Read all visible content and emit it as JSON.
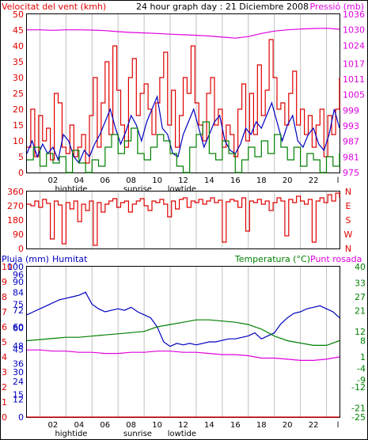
{
  "header": {
    "wind_title": "Velocitat del vent (kmh)",
    "graph_title": "24 hour graph day : 21 Diciembre 2008",
    "pressure_title": "Pressió (mb)"
  },
  "bottom_header": {
    "rain_title": "Pluja (mm)",
    "humidity_title": "Humitat",
    "temperature_title": "Temperatura (°C)",
    "dewpoint_title": "Punt rosada"
  },
  "x_ticks": [
    "02",
    "04",
    "06",
    "08",
    "10",
    "12",
    "14",
    "16",
    "18",
    "20",
    "22"
  ],
  "x_annotations": [
    {
      "label": "hightide",
      "hour": 3.4
    },
    {
      "label": "sunrise",
      "hour": 8.5
    },
    {
      "label": "lowtide",
      "hour": 11.9
    }
  ],
  "colors": {
    "wind_speed": "#e00000",
    "wind_avg": "#0000c0",
    "wind_min": "#008000",
    "pressure": "#e000e0",
    "direction": "#e00000",
    "humidity": "#0000c0",
    "temperature": "#008000",
    "dewpoint": "#e000e0",
    "rain": "#e00000",
    "grid": "#c0c0c0"
  },
  "chart_data": [
    {
      "type": "line",
      "title": "24 hour graph day : 21 Diciembre 2008",
      "ylabel": "Velocitat del vent (kmh)",
      "y2label": "Pressió (mb)",
      "x_range": [
        0,
        24
      ],
      "ylim": [
        0,
        50
      ],
      "y_ticks": [
        0,
        5,
        10,
        15,
        20,
        25,
        30,
        35,
        40,
        45,
        50
      ],
      "y2lim": [
        975,
        1036
      ],
      "y2_ticks": [
        975,
        981,
        987,
        993,
        999,
        1005,
        1011,
        1017,
        1024,
        1030,
        1036
      ],
      "series": [
        {
          "name": "Velocitat del vent (kmh)",
          "axis": "left",
          "style": "step",
          "x": [
            0,
            0.3,
            0.6,
            0.9,
            1.2,
            1.5,
            1.8,
            2.1,
            2.4,
            2.7,
            3,
            3.3,
            3.6,
            3.9,
            4.2,
            4.5,
            4.8,
            5.1,
            5.4,
            5.7,
            6,
            6.3,
            6.6,
            6.9,
            7.2,
            7.5,
            7.8,
            8.1,
            8.4,
            8.7,
            9,
            9.3,
            9.6,
            9.9,
            10.2,
            10.5,
            10.8,
            11.1,
            11.4,
            11.7,
            12,
            12.3,
            12.6,
            12.9,
            13.2,
            13.5,
            13.8,
            14.1,
            14.4,
            14.7,
            15,
            15.3,
            15.6,
            15.9,
            16.2,
            16.5,
            16.8,
            17.1,
            17.4,
            17.7,
            18,
            18.3,
            18.6,
            18.9,
            19.2,
            19.5,
            19.8,
            20.1,
            20.4,
            20.7,
            21,
            21.3,
            21.6,
            21.9,
            22.2,
            22.5,
            22.8,
            23.1,
            23.4,
            23.7,
            24
          ],
          "values": [
            8,
            20,
            5,
            18,
            10,
            14,
            4,
            25,
            22,
            8,
            6,
            15,
            5,
            8,
            12,
            3,
            18,
            30,
            8,
            22,
            35,
            12,
            40,
            26,
            15,
            8,
            30,
            36,
            18,
            25,
            28,
            20,
            12,
            22,
            30,
            38,
            15,
            26,
            8,
            18,
            30,
            25,
            40,
            22,
            15,
            10,
            25,
            30,
            15,
            20,
            8,
            15,
            12,
            5,
            20,
            28,
            10,
            25,
            12,
            34,
            18,
            26,
            42,
            30,
            20,
            22,
            15,
            25,
            32,
            15,
            20,
            12,
            18,
            8,
            15,
            20,
            5,
            18,
            12,
            20,
            30
          ]
        },
        {
          "name": "Velocitat mitjana",
          "axis": "left",
          "style": "line",
          "x": [
            0,
            0.4,
            0.8,
            1.2,
            1.6,
            2,
            2.4,
            2.8,
            3.2,
            3.6,
            4,
            4.4,
            4.8,
            5.2,
            5.6,
            6,
            6.4,
            6.8,
            7.2,
            7.6,
            8,
            8.4,
            8.8,
            9.2,
            9.6,
            10,
            10.4,
            10.8,
            11.2,
            11.6,
            12,
            12.4,
            12.8,
            13.2,
            13.6,
            14,
            14.4,
            14.8,
            15.2,
            15.6,
            16,
            16.4,
            16.8,
            17.2,
            17.6,
            18,
            18.4,
            18.8,
            19.2,
            19.6,
            20,
            20.4,
            20.8,
            21.2,
            21.6,
            22,
            22.4,
            22.8,
            23.2,
            23.6,
            24
          ],
          "values": [
            6,
            10,
            5,
            9,
            6,
            8,
            4,
            12,
            10,
            5,
            3,
            7,
            5,
            9,
            12,
            16,
            20,
            14,
            9,
            13,
            18,
            15,
            10,
            16,
            20,
            24,
            14,
            12,
            6,
            5,
            12,
            16,
            20,
            14,
            8,
            12,
            16,
            18,
            10,
            7,
            6,
            9,
            14,
            12,
            16,
            14,
            18,
            22,
            16,
            10,
            15,
            18,
            10,
            8,
            12,
            14,
            9,
            7,
            12,
            20,
            14
          ]
        },
        {
          "name": "Velocitat mínima",
          "axis": "left",
          "style": "step",
          "x": [
            0,
            0.5,
            1,
            1.5,
            2,
            2.5,
            3,
            3.5,
            4,
            4.5,
            5,
            5.5,
            6,
            6.5,
            7,
            7.5,
            8,
            8.5,
            9,
            9.5,
            10,
            10.5,
            11,
            11.5,
            12,
            12.5,
            13,
            13.5,
            14,
            14.5,
            15,
            15.5,
            16,
            16.5,
            17,
            17.5,
            18,
            18.5,
            19,
            19.5,
            20,
            20.5,
            21,
            21.5,
            22,
            22.5,
            23,
            23.5,
            24
          ],
          "values": [
            4,
            8,
            2,
            6,
            3,
            5,
            0,
            7,
            3,
            0,
            4,
            2,
            8,
            12,
            6,
            10,
            14,
            6,
            4,
            8,
            12,
            10,
            6,
            2,
            0,
            8,
            12,
            16,
            6,
            4,
            10,
            6,
            0,
            4,
            8,
            5,
            10,
            6,
            12,
            8,
            4,
            8,
            2,
            6,
            4,
            0,
            5,
            2,
            6
          ]
        },
        {
          "name": "Pressió (mb)",
          "axis": "right",
          "style": "line",
          "x": [
            0,
            1,
            2,
            3,
            4,
            5,
            6,
            7,
            8,
            9,
            10,
            11,
            12,
            13,
            14,
            15,
            16,
            17,
            18,
            19,
            20,
            21,
            22,
            23,
            23.6,
            24
          ],
          "values": [
            1030,
            1030,
            1029.8,
            1030,
            1030,
            1029.9,
            1029.7,
            1029.3,
            1029,
            1028.8,
            1028.6,
            1028.3,
            1028.1,
            1027.9,
            1027.6,
            1027.2,
            1026.8,
            1027.4,
            1028.6,
            1029.5,
            1030,
            1030.3,
            1030.5,
            1030.6,
            1030.4,
            1030.2
          ]
        }
      ]
    },
    {
      "type": "line",
      "ylabel": "Direcció del vent",
      "x_range": [
        0,
        24
      ],
      "ylim": [
        0,
        360
      ],
      "y_ticks": [
        0,
        90,
        180,
        270,
        360
      ],
      "y2_ticks": [
        "N",
        "W",
        "S",
        "E",
        "N"
      ],
      "series": [
        {
          "name": "Direcció del vent",
          "style": "step",
          "x": [
            0,
            0.3,
            0.6,
            0.9,
            1.2,
            1.5,
            1.8,
            2.1,
            2.4,
            2.7,
            3,
            3.3,
            3.6,
            3.9,
            4.2,
            4.5,
            4.8,
            5.1,
            5.4,
            5.7,
            6,
            6.3,
            6.6,
            6.9,
            7.2,
            7.5,
            7.8,
            8.1,
            8.4,
            8.7,
            9,
            9.3,
            9.6,
            9.9,
            10.2,
            10.5,
            10.8,
            11.1,
            11.4,
            11.7,
            12,
            12.3,
            12.6,
            12.9,
            13.2,
            13.5,
            13.8,
            14.1,
            14.4,
            14.7,
            15,
            15.3,
            15.6,
            15.9,
            16.2,
            16.5,
            16.8,
            17.1,
            17.4,
            17.7,
            18,
            18.3,
            18.6,
            18.9,
            19.2,
            19.5,
            19.8,
            20.1,
            20.4,
            20.7,
            21,
            21.3,
            21.6,
            21.9,
            22.2,
            22.5,
            22.8,
            23.1,
            23.4,
            23.7,
            24
          ],
          "values": [
            280,
            270,
            300,
            260,
            310,
            285,
            60,
            300,
            275,
            30,
            290,
            250,
            300,
            170,
            280,
            240,
            300,
            20,
            290,
            230,
            280,
            300,
            315,
            260,
            290,
            300,
            230,
            280,
            300,
            315,
            270,
            240,
            300,
            290,
            310,
            280,
            200,
            300,
            250,
            310,
            320,
            260,
            300,
            290,
            310,
            280,
            300,
            320,
            290,
            305,
            40,
            295,
            310,
            300,
            260,
            320,
            110,
            300,
            290,
            310,
            280,
            300,
            240,
            290,
            320,
            300,
            80,
            310,
            290,
            330,
            300,
            280,
            310,
            40,
            300,
            320,
            290,
            340,
            300,
            350,
            320
          ]
        }
      ]
    },
    {
      "type": "line",
      "x_range": [
        0,
        24
      ],
      "ylabel": "Pluja (mm) / Humitat",
      "y_ticks_left_rain": [
        0,
        1,
        2,
        3,
        4,
        5,
        6,
        7,
        8,
        9,
        10
      ],
      "y_ticks_left_hum": [
        0,
        15,
        30,
        45,
        60,
        75,
        90,
        100
      ],
      "y_ticks_left_12": [
        0,
        12,
        24,
        36,
        48,
        60,
        72,
        84,
        96
      ],
      "y2label": "Temperatura (°C) / Punt rosada",
      "y2lim": [
        -25,
        40
      ],
      "y2_ticks": [
        -25,
        -21,
        -12,
        -9,
        -4,
        1,
        8,
        12,
        21,
        27,
        33,
        40
      ],
      "ylim": [
        0,
        100
      ],
      "series": [
        {
          "name": "Humitat",
          "axis": "left",
          "style": "line",
          "x": [
            0,
            0.5,
            1,
            1.5,
            2,
            2.5,
            3,
            3.5,
            4,
            4.5,
            5,
            5.5,
            6,
            6.5,
            7,
            7.5,
            8,
            8.5,
            9,
            9.5,
            10,
            10.5,
            11,
            11.5,
            12,
            12.5,
            13,
            13.5,
            14,
            14.5,
            15,
            15.5,
            16,
            16.5,
            17,
            17.5,
            18,
            18.5,
            19,
            19.5,
            20,
            20.5,
            21,
            21.5,
            22,
            22.5,
            23,
            23.5,
            24
          ],
          "values": [
            68,
            70,
            72,
            74,
            76,
            78,
            79,
            80,
            81,
            83,
            75,
            72,
            70,
            71,
            72,
            71,
            73,
            70,
            68,
            66,
            60,
            50,
            47,
            49,
            48,
            49,
            48,
            49,
            50,
            50,
            51,
            52,
            52,
            53,
            54,
            56,
            52,
            54,
            56,
            62,
            66,
            69,
            70,
            72,
            73,
            74,
            72,
            70,
            66
          ]
        },
        {
          "name": "Temperatura (°C)",
          "axis": "right",
          "style": "line",
          "x": [
            0,
            1,
            2,
            3,
            4,
            5,
            6,
            7,
            8,
            9,
            10,
            11,
            12,
            13,
            14,
            15,
            16,
            17,
            18,
            19,
            20,
            21,
            22,
            23,
            24
          ],
          "values": [
            8,
            8.5,
            9,
            9.5,
            9.5,
            10,
            10.5,
            11,
            11.5,
            12,
            14,
            15,
            16,
            17,
            17,
            16.5,
            16,
            15,
            13,
            10,
            8,
            7,
            6,
            6,
            8
          ]
        },
        {
          "name": "Punt rosada",
          "axis": "right",
          "style": "line",
          "x": [
            0,
            1,
            2,
            3,
            4,
            5,
            6,
            7,
            8,
            9,
            10,
            11,
            12,
            13,
            14,
            15,
            16,
            17,
            18,
            19,
            20,
            21,
            22,
            23,
            24
          ],
          "values": [
            4,
            4,
            3.5,
            3.5,
            3,
            3,
            2.5,
            2.5,
            3,
            3,
            3.5,
            3.5,
            3,
            3,
            2.5,
            2,
            2,
            1.5,
            0.5,
            0.5,
            0,
            -0.5,
            -0.5,
            0,
            1
          ]
        },
        {
          "name": "Pluja (mm)",
          "axis": "left",
          "style": "line",
          "x": [
            0,
            24
          ],
          "values": [
            0,
            0
          ]
        }
      ]
    }
  ]
}
